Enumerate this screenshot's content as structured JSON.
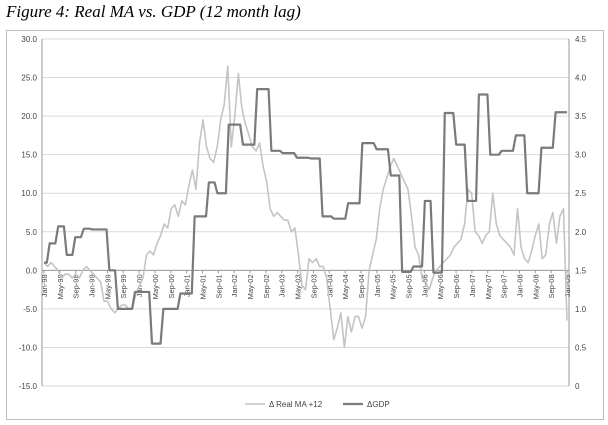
{
  "figure_title": "Figure 4: Real MA vs. GDP (12 month lag)",
  "chart_data": {
    "type": "line",
    "title": "",
    "xlabel": "",
    "ylabel": "",
    "grid": true,
    "legend_position": "bottom",
    "y_left": {
      "lim": [
        -15,
        30
      ],
      "ticks": [
        "-15.0",
        "-10.0",
        "-5.0",
        "0.0",
        "5.0",
        "10.0",
        "15.0",
        "20.0",
        "25.0",
        "30.0"
      ]
    },
    "y_right": {
      "lim": [
        0,
        4.5
      ],
      "ticks": [
        "0",
        "0.5",
        "1.0",
        "1.5",
        "2.0",
        "2.5",
        "3.0",
        "3.5",
        "4.0",
        "4.5"
      ]
    },
    "x_tick_labels": [
      "Jan-98",
      "May-98",
      "Sep-98",
      "Jan-99",
      "May-99",
      "Sep-99",
      "Jan-00",
      "May-00",
      "Sep-00",
      "Jan-01",
      "May-01",
      "Sep-01",
      "Jan-02",
      "May-02",
      "Sep-02",
      "Jan-03",
      "May-03",
      "Sep-03",
      "Jan-04",
      "May-04",
      "Sep-04",
      "Jan-05",
      "May-05",
      "Sep-05",
      "Jan-06",
      "May-06",
      "Sep-06",
      "Jan-07",
      "May-07",
      "Sep-07",
      "Jan-08",
      "May-08",
      "Sep-08",
      "Jan-09"
    ],
    "series": [
      {
        "name": "Δ Real MA +12",
        "axis": "left",
        "color": "#c4c4c4",
        "values": [
          1,
          0.5,
          1,
          0.5,
          0,
          -1,
          -0.5,
          -0.5,
          -1,
          -0.5,
          -1,
          0,
          0.5,
          0,
          -0.5,
          -1,
          -1.5,
          -4,
          -4,
          -5,
          -5.5,
          -5,
          -4.5,
          -4.5,
          -5,
          -5,
          -3,
          -2,
          -1,
          2,
          2.5,
          2,
          3.5,
          4.5,
          6,
          5.5,
          8,
          8.5,
          7,
          9,
          8.5,
          11,
          13,
          10.5,
          16.5,
          19.5,
          16,
          14.5,
          14,
          16,
          19.5,
          21.5,
          26.5,
          16,
          20,
          25.5,
          21,
          19,
          17.5,
          16,
          15.5,
          16.5,
          13.5,
          11.5,
          8,
          7,
          7.5,
          7,
          6.5,
          6.5,
          5,
          5.5,
          2,
          -2,
          -2.5,
          1.5,
          1,
          1.5,
          0.5,
          0.5,
          -1,
          -5,
          -9,
          -7.5,
          -5.5,
          -10,
          -6,
          -8,
          -6,
          -6,
          -7.5,
          -6,
          0,
          2,
          4,
          8,
          10.5,
          12,
          13.5,
          14.5,
          13.5,
          12.5,
          11.5,
          10.5,
          7,
          3,
          2,
          -1,
          -1.5,
          -2.5,
          -1,
          0,
          0.5,
          1,
          1.5,
          2,
          3,
          3.5,
          4,
          6,
          10.5,
          10,
          5,
          4.5,
          3.5,
          4.5,
          5,
          10,
          6,
          4.5,
          4,
          3.5,
          3,
          2,
          8,
          3,
          1.5,
          1,
          2.5,
          4.5,
          6,
          1.5,
          2,
          6,
          7.5,
          3.5,
          7,
          8,
          -6.5
        ]
      },
      {
        "name": "ΔGDP",
        "axis": "right",
        "color": "#7a7a7a",
        "values": [
          1.6,
          1.6,
          1.85,
          1.85,
          1.85,
          2.07,
          2.07,
          2.07,
          1.7,
          1.7,
          1.7,
          1.93,
          1.93,
          1.93,
          2.04,
          2.04,
          2.04,
          2.03,
          2.03,
          2.03,
          2.03,
          2.03,
          2.03,
          1.5,
          1.5,
          1.5,
          1.0,
          1.0,
          1.0,
          1.0,
          1.0,
          1.0,
          1.22,
          1.22,
          1.22,
          1.22,
          1.22,
          1.22,
          0.55,
          0.55,
          0.55,
          0.55,
          1.0,
          1.0,
          1.0,
          1.0,
          1.0,
          1.0,
          1.2,
          1.2,
          1.2,
          1.2,
          1.2,
          2.2,
          2.2,
          2.2,
          2.2,
          2.2,
          2.64,
          2.64,
          2.64,
          2.5,
          2.5,
          2.5,
          2.5,
          3.39,
          3.39,
          3.39,
          3.39,
          3.39,
          3.13,
          3.13,
          3.13,
          3.13,
          3.13,
          3.85,
          3.85,
          3.85,
          3.85,
          3.85,
          3.05,
          3.05,
          3.05,
          3.05,
          3.02,
          3.02,
          3.02,
          3.02,
          3.02,
          2.96,
          2.96,
          2.96,
          2.96,
          2.96,
          2.95,
          2.95,
          2.95,
          2.95,
          2.2,
          2.2,
          2.2,
          2.2,
          2.17,
          2.17,
          2.17,
          2.17,
          2.17,
          2.37,
          2.37,
          2.37,
          2.37,
          2.37,
          3.15,
          3.15,
          3.15,
          3.15,
          3.15,
          3.07,
          3.07,
          3.07,
          3.07,
          3.07,
          2.73,
          2.73,
          2.73,
          2.73,
          1.48,
          1.48,
          1.48,
          1.48,
          1.55,
          1.55,
          1.55,
          1.55,
          2.4,
          2.4,
          2.4,
          1.47,
          1.47,
          1.47,
          1.47,
          3.54,
          3.54,
          3.54,
          3.54,
          3.13,
          3.13,
          3.13,
          3.13,
          2.4,
          2.4,
          2.4,
          2.4,
          3.78,
          3.78,
          3.78,
          3.78,
          3.0,
          3.0,
          3.0,
          3.0,
          3.05,
          3.05,
          3.05,
          3.05,
          3.05,
          3.25,
          3.25,
          3.25,
          3.25,
          2.5,
          2.5,
          2.5,
          2.5,
          2.5,
          3.09,
          3.09,
          3.09,
          3.09,
          3.09,
          3.55,
          3.55,
          3.55,
          3.55,
          3.55
        ]
      }
    ]
  }
}
